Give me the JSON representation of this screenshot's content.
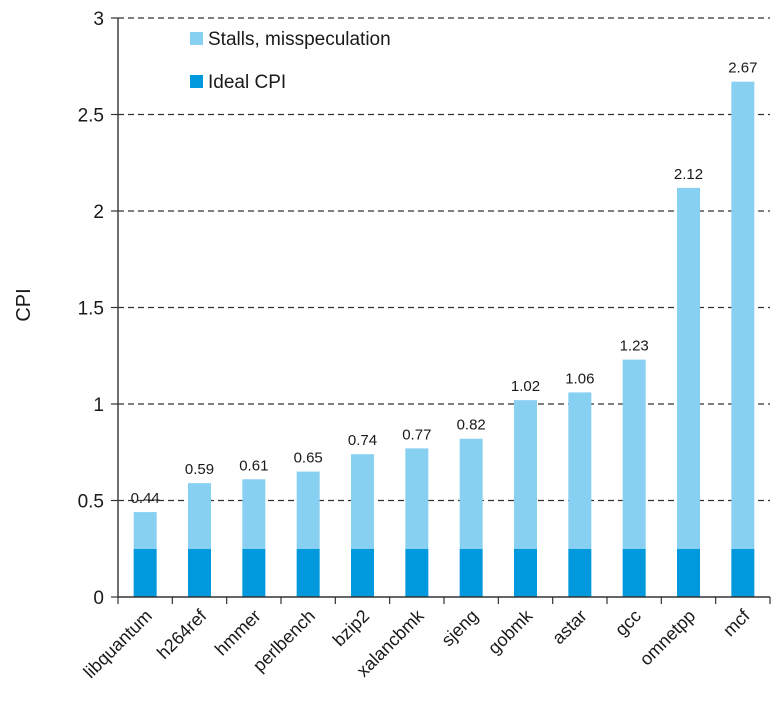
{
  "chart_data": {
    "type": "bar",
    "stacked": true,
    "ylabel": "CPI",
    "xlabel": "",
    "ylim": [
      0,
      3
    ],
    "yticks": [
      "0",
      "0.5",
      "1",
      "1.5",
      "2",
      "2.5",
      "3"
    ],
    "grid": "horizontal-dashed",
    "legend_position": "top-left",
    "categories": [
      "libquantum",
      "h264ref",
      "hmmer",
      "perlbench",
      "bzip2",
      "xalancbmk",
      "sjeng",
      "gobmk",
      "astar",
      "gcc",
      "omnetpp",
      "mcf"
    ],
    "totals": [
      0.44,
      0.59,
      0.61,
      0.65,
      0.74,
      0.77,
      0.82,
      1.02,
      1.06,
      1.23,
      2.12,
      2.67
    ],
    "total_labels": [
      "0.44",
      "0.59",
      "0.61",
      "0.65",
      "0.74",
      "0.77",
      "0.82",
      "1.02",
      "1.06",
      "1.23",
      "2.12",
      "2.67"
    ],
    "series": [
      {
        "name": "Ideal CPI",
        "color": "#0099dd",
        "values": [
          0.25,
          0.25,
          0.25,
          0.25,
          0.25,
          0.25,
          0.25,
          0.25,
          0.25,
          0.25,
          0.25,
          0.25
        ]
      },
      {
        "name": "Stalls, misspeculation",
        "color": "#88d0f2",
        "values": [
          0.19,
          0.34,
          0.36,
          0.4,
          0.49,
          0.52,
          0.57,
          0.77,
          0.81,
          0.98,
          1.87,
          2.42
        ]
      }
    ],
    "legend": [
      {
        "label": "Stalls, misspeculation",
        "color": "#88d0f2"
      },
      {
        "label": "Ideal CPI",
        "color": "#0099dd"
      }
    ]
  }
}
